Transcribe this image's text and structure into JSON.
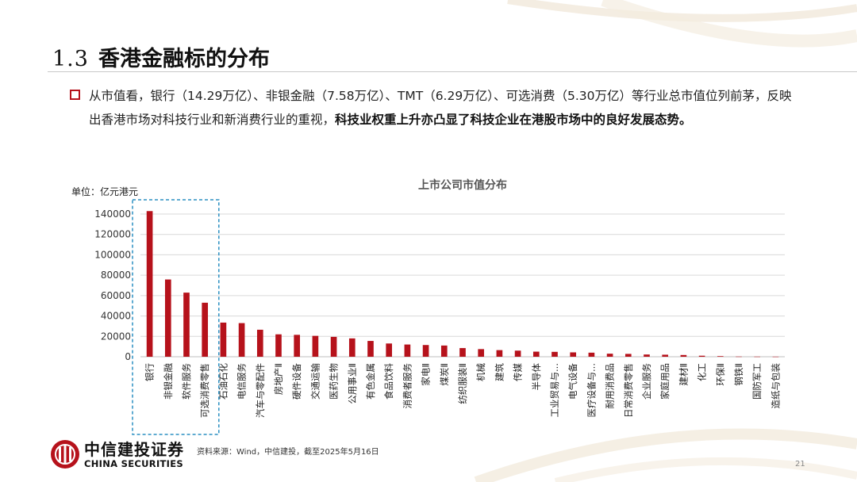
{
  "slide": {
    "section_number": "1.3",
    "title": "香港金融标的分布",
    "para_normal": "从市值看，银行（14.29万亿）、非银金融（7.58万亿）、TMT（6.29万亿）、可选消费（5.30万亿）等行业总市值位列前茅，反映出香港市场对科技行业和新消费行业的重视，",
    "para_bold": "科技业权重上升亦凸显了科技企业在港股市场中的良好发展态势。",
    "source": "资料来源：Wind，中信建投，截至2025年5月16日",
    "page_number": "21",
    "logo_cn": "中信建投证券",
    "logo_en": "CHINA SECURITIES"
  },
  "colors": {
    "accent_red": "#b6121b",
    "highlight_box": "#2a8fc2",
    "grid": "#d9d9d9"
  },
  "chart_data": {
    "type": "bar",
    "title": "上市公司市值分布",
    "ylabel": "单位：亿元港元",
    "ylim": [
      0,
      140000
    ],
    "yticks": [
      0,
      20000,
      40000,
      60000,
      80000,
      100000,
      120000,
      140000
    ],
    "grid": true,
    "categories": [
      "银行",
      "非银金融",
      "软件服务",
      "可选消费零售",
      "石油石化",
      "电信服务",
      "汽车与零配件",
      "房地产Ⅱ",
      "硬件设备",
      "交通运输",
      "医药生物",
      "公用事业Ⅱ",
      "有色金属",
      "食品饮料",
      "消费者服务",
      "家电Ⅱ",
      "煤炭Ⅱ",
      "纺织服装Ⅱ",
      "机械",
      "建筑",
      "传媒",
      "半导体",
      "工业贸易与...",
      "电气设备",
      "医疗设备与...",
      "耐用消费品",
      "日常消费零售",
      "企业服务",
      "家庭用品",
      "建材Ⅱ",
      "化工",
      "环保Ⅱ",
      "钢铁Ⅱ",
      "国防军工",
      "造纸与包装"
    ],
    "values": [
      142900,
      75800,
      62900,
      53000,
      33500,
      33000,
      26500,
      22000,
      21500,
      20500,
      19500,
      18000,
      15500,
      13000,
      12000,
      11500,
      11000,
      8500,
      7500,
      6500,
      6000,
      5000,
      4800,
      4300,
      4000,
      3000,
      2800,
      2200,
      2000,
      1700,
      1000,
      600,
      200,
      150,
      100
    ],
    "highlighted_categories": [
      "银行",
      "非银金融",
      "软件服务",
      "可选消费零售"
    ]
  }
}
